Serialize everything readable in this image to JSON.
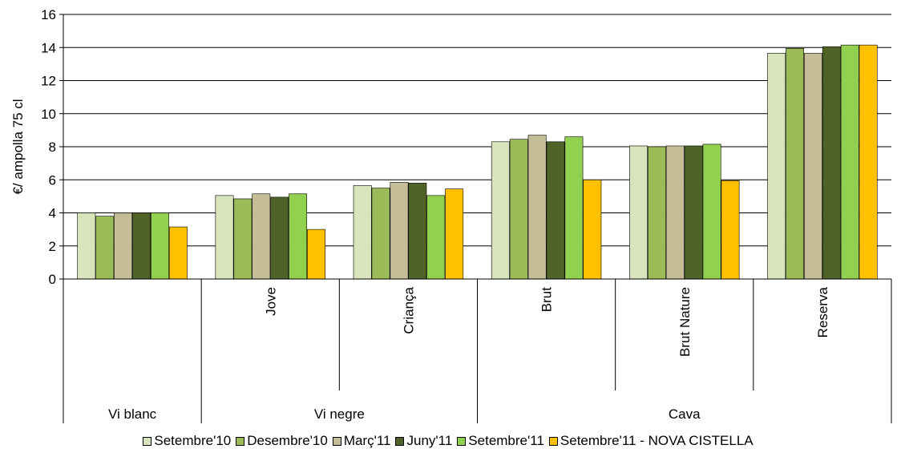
{
  "chart_data": {
    "type": "bar",
    "ylabel": "€/ ampolla  75 cl",
    "ylim": [
      0,
      16
    ],
    "yticks": [
      "0",
      "2",
      "4",
      "6",
      "8",
      "10",
      "12",
      "14",
      "16"
    ],
    "grid": true,
    "legend_position": "bottom",
    "groups": [
      {
        "label": "Vi blanc",
        "subcategories": [
          ""
        ]
      },
      {
        "label": "Vi negre",
        "subcategories": [
          "Jove",
          "Criança"
        ]
      },
      {
        "label": "Cava",
        "subcategories": [
          "Brut",
          "Brut Nature",
          "Reserva"
        ]
      }
    ],
    "categories": [
      "Vi blanc",
      "Jove",
      "Criança",
      "Brut",
      "Brut Nature",
      "Reserva"
    ],
    "series": [
      {
        "name": "Setembre'10",
        "color": "#d8e4bc",
        "values": [
          4.0,
          5.05,
          5.65,
          8.3,
          8.05,
          13.65
        ]
      },
      {
        "name": "Desembre'10",
        "color": "#9bbb59",
        "values": [
          3.8,
          4.85,
          5.5,
          8.45,
          8.0,
          13.95
        ]
      },
      {
        "name": "Març'11",
        "color": "#c4bd97",
        "values": [
          4.0,
          5.15,
          5.85,
          8.7,
          8.05,
          13.65
        ]
      },
      {
        "name": "Juny'11",
        "color": "#4f6228",
        "values": [
          4.0,
          4.95,
          5.8,
          8.3,
          8.05,
          14.05
        ]
      },
      {
        "name": "Setembre'11",
        "color": "#92d050",
        "values": [
          4.0,
          5.15,
          5.05,
          8.6,
          8.15,
          14.15
        ]
      },
      {
        "name": "Setembre'11 - NOVA CISTELLA",
        "color": "#ffc000",
        "values": [
          3.15,
          3.0,
          5.45,
          6.0,
          5.95,
          14.15
        ]
      }
    ]
  }
}
